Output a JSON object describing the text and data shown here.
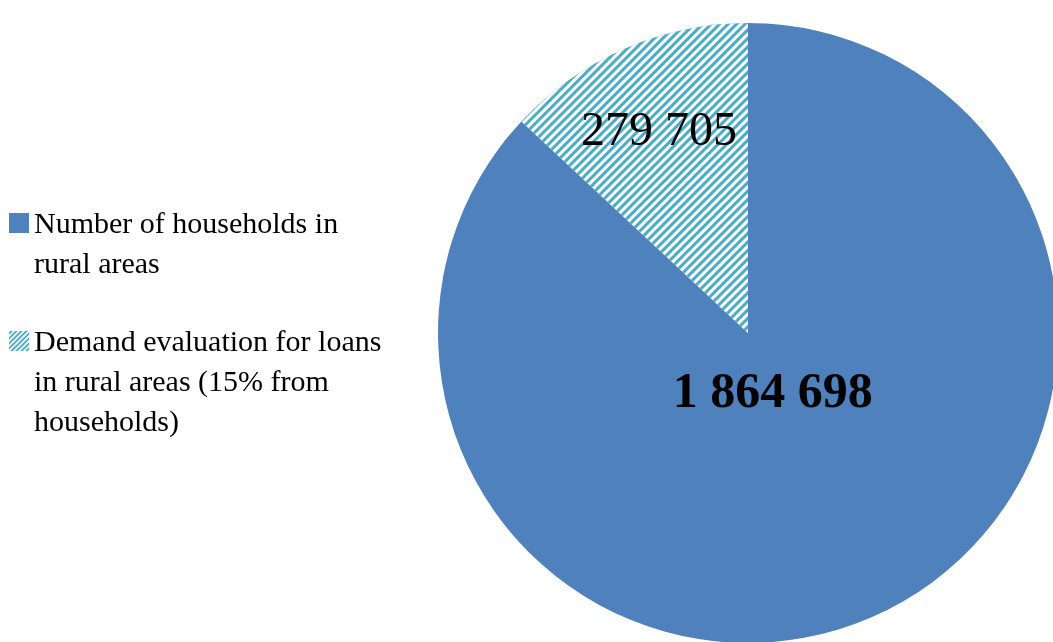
{
  "chart_data": {
    "type": "pie",
    "categories": [
      "Number of households in rural areas",
      "Demand evaluation for loans in rural areas (15% from households)"
    ],
    "values": [
      1864698,
      279705
    ],
    "value_labels": [
      "1 864 698",
      "279 705"
    ],
    "colors": [
      "#4f81bd",
      "#4bacc6"
    ],
    "legend": "left"
  }
}
